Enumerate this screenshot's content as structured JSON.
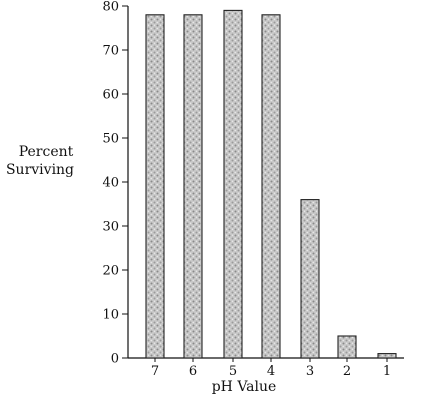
{
  "chart_data": {
    "type": "bar",
    "title": "",
    "xlabel": "pH Value",
    "ylabel": [
      "Percent",
      "Surviving"
    ],
    "categories": [
      "7",
      "6",
      "5",
      "4",
      "3",
      "2",
      "1"
    ],
    "values": [
      78,
      78,
      79,
      78,
      36,
      5,
      1
    ],
    "ylim": [
      0,
      80
    ],
    "yticks": [
      "0",
      "10",
      "20",
      "30",
      "40",
      "50",
      "60",
      "70",
      "80"
    ],
    "grid": false,
    "bar_fill": "#b8b8b8",
    "bar_stroke": "#222222"
  }
}
